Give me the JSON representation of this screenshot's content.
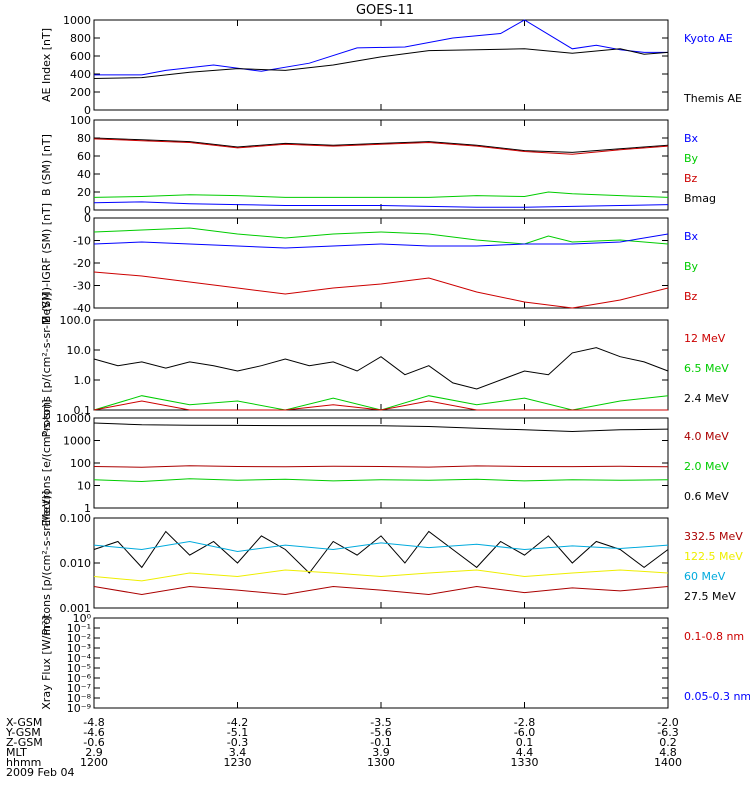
{
  "title": "GOES-11",
  "date_label": "2009 Feb 04",
  "x_axis": {
    "ticks": [
      1200,
      1230,
      1300,
      1330,
      1400
    ],
    "rows": [
      {
        "label": "X-GSM",
        "values": [
          "-4.8",
          "-4.2",
          "-3.5",
          "-2.8",
          "-2.0"
        ]
      },
      {
        "label": "Y-GSM",
        "values": [
          "-4.6",
          "-5.1",
          "-5.6",
          "-6.0",
          "-6.3"
        ]
      },
      {
        "label": "Z-GSM",
        "values": [
          "-0.6",
          "-0.3",
          "-0.1",
          "0.1",
          "0.2"
        ]
      },
      {
        "label": "MLT",
        "values": [
          "2.9",
          "3.4",
          "3.9",
          "4.4",
          "4.8"
        ]
      },
      {
        "label": "hhmm",
        "values": [
          "1200",
          "1230",
          "1300",
          "1330",
          "1400"
        ]
      }
    ]
  },
  "colors": {
    "black": "#000000",
    "blue": "#0000ff",
    "green": "#00cc00",
    "red": "#cc0000",
    "darkred": "#aa0000",
    "yellow": "#eeee00",
    "cyan": "#00aadd"
  },
  "chart_data": [
    {
      "type": "line",
      "ylabel": "AE Index [nT]",
      "ylim": [
        0,
        1000
      ],
      "yticks": [
        "0",
        "200",
        "400",
        "600",
        "800",
        "1000"
      ],
      "legend": [
        {
          "label": "Kyoto AE",
          "color": "#0000ff"
        },
        {
          "label": "Themis AE",
          "color": "#000000"
        }
      ],
      "series": [
        {
          "name": "Kyoto AE",
          "color": "#0000ff",
          "x": [
            1200,
            1210,
            1215,
            1225,
            1235,
            1245,
            1255,
            1305,
            1315,
            1325,
            1330,
            1340,
            1345,
            1350,
            1355,
            1400
          ],
          "y": [
            390,
            390,
            440,
            500,
            430,
            520,
            690,
            700,
            800,
            850,
            1000,
            680,
            720,
            670,
            640,
            640
          ]
        },
        {
          "name": "Themis AE",
          "color": "#000000",
          "x": [
            1200,
            1210,
            1220,
            1230,
            1240,
            1250,
            1300,
            1310,
            1320,
            1330,
            1340,
            1350,
            1355,
            1400
          ],
          "y": [
            350,
            360,
            420,
            460,
            440,
            500,
            590,
            660,
            670,
            680,
            630,
            680,
            620,
            640
          ]
        }
      ]
    },
    {
      "type": "line",
      "ylabel": "B (SM) [nT]",
      "ylim": [
        0,
        100
      ],
      "yticks": [
        "0",
        "20",
        "40",
        "60",
        "80",
        "100"
      ],
      "legend": [
        {
          "label": "Bx",
          "color": "#0000ff"
        },
        {
          "label": "By",
          "color": "#00cc00"
        },
        {
          "label": "Bz",
          "color": "#cc0000"
        },
        {
          "label": "Bmag",
          "color": "#000000"
        }
      ],
      "series": [
        {
          "name": "Bmag",
          "color": "#000000",
          "x": [
            1200,
            1210,
            1220,
            1230,
            1240,
            1250,
            1300,
            1310,
            1320,
            1330,
            1340,
            1350,
            1400
          ],
          "y": [
            80,
            78,
            76,
            70,
            74,
            72,
            74,
            76,
            72,
            66,
            64,
            68,
            72
          ]
        },
        {
          "name": "Bz",
          "color": "#cc0000",
          "x": [
            1200,
            1210,
            1220,
            1230,
            1240,
            1250,
            1300,
            1310,
            1320,
            1330,
            1340,
            1350,
            1400
          ],
          "y": [
            79,
            77,
            75,
            69,
            73,
            71,
            73,
            75,
            71,
            65,
            62,
            67,
            71
          ]
        },
        {
          "name": "By",
          "color": "#00cc00",
          "x": [
            1200,
            1210,
            1220,
            1230,
            1240,
            1250,
            1300,
            1310,
            1320,
            1330,
            1335,
            1340,
            1350,
            1400
          ],
          "y": [
            14,
            15,
            17,
            16,
            14,
            14,
            14,
            14,
            16,
            15,
            20,
            18,
            16,
            14
          ]
        },
        {
          "name": "Bx",
          "color": "#0000ff",
          "x": [
            1200,
            1210,
            1220,
            1230,
            1240,
            1250,
            1300,
            1310,
            1320,
            1330,
            1340,
            1350,
            1400
          ],
          "y": [
            8,
            9,
            7,
            6,
            5,
            5,
            5,
            4,
            3,
            3,
            4,
            5,
            6
          ]
        }
      ]
    },
    {
      "type": "line",
      "ylabel": "B (SM)-IGRF (SM) [nT]",
      "ylim": [
        -40,
        5
      ],
      "yticks": [
        "-40",
        "-30",
        "-20",
        "-10",
        "0"
      ],
      "legend": [
        {
          "label": "Bx",
          "color": "#0000ff"
        },
        {
          "label": "By",
          "color": "#00cc00"
        },
        {
          "label": "Bz",
          "color": "#cc0000"
        }
      ],
      "series": [
        {
          "name": "By",
          "color": "#00cc00",
          "x": [
            1200,
            1210,
            1220,
            1230,
            1240,
            1250,
            1300,
            1310,
            1320,
            1330,
            1335,
            1340,
            1350,
            1400
          ],
          "y": [
            -2,
            -1,
            0,
            -3,
            -5,
            -3,
            -2,
            -3,
            -6,
            -8,
            -4,
            -7,
            -6,
            -8
          ]
        },
        {
          "name": "Bx",
          "color": "#0000ff",
          "x": [
            1200,
            1210,
            1220,
            1230,
            1240,
            1250,
            1300,
            1310,
            1320,
            1330,
            1340,
            1350,
            1400
          ],
          "y": [
            -8,
            -7,
            -8,
            -9,
            -10,
            -9,
            -8,
            -9,
            -9,
            -8,
            -8,
            -7,
            -3
          ]
        },
        {
          "name": "Bz",
          "color": "#cc0000",
          "x": [
            1200,
            1210,
            1220,
            1230,
            1240,
            1250,
            1300,
            1310,
            1320,
            1330,
            1340,
            1345,
            1350,
            1400
          ],
          "y": [
            -22,
            -24,
            -27,
            -30,
            -33,
            -30,
            -28,
            -25,
            -32,
            -37,
            -40,
            -38,
            -36,
            -30
          ]
        }
      ]
    },
    {
      "type": "line",
      "ylabel": "Protons [p/(cm²-s-sr-MeV)]",
      "yscale": "log",
      "ylim": [
        0.1,
        100
      ],
      "yticks": [
        "0.1",
        "1.0",
        "10.0",
        "100.0"
      ],
      "legend": [
        {
          "label": "12 MeV",
          "color": "#cc0000"
        },
        {
          "label": "6.5 MeV",
          "color": "#00cc00"
        },
        {
          "label": "2.4 MeV",
          "color": "#000000"
        }
      ],
      "series": [
        {
          "name": "2.4 MeV",
          "color": "#000000",
          "x": [
            1200,
            1205,
            1210,
            1215,
            1220,
            1225,
            1230,
            1235,
            1240,
            1245,
            1250,
            1255,
            1300,
            1305,
            1310,
            1315,
            1320,
            1330,
            1335,
            1340,
            1345,
            1350,
            1355,
            1400
          ],
          "y": [
            5,
            3,
            4,
            2.5,
            4,
            3,
            2,
            3,
            5,
            3,
            4,
            2,
            6,
            1.5,
            3,
            0.8,
            0.5,
            2,
            1.5,
            8,
            12,
            6,
            4,
            2
          ]
        },
        {
          "name": "6.5 MeV",
          "color": "#00cc00",
          "x": [
            1200,
            1210,
            1220,
            1230,
            1240,
            1250,
            1300,
            1310,
            1320,
            1330,
            1340,
            1350,
            1400
          ],
          "y": [
            0.1,
            0.3,
            0.15,
            0.2,
            0.1,
            0.25,
            0.1,
            0.3,
            0.15,
            0.25,
            0.1,
            0.2,
            0.3
          ]
        },
        {
          "name": "12 MeV",
          "color": "#cc0000",
          "x": [
            1200,
            1210,
            1220,
            1230,
            1240,
            1250,
            1300,
            1310,
            1320,
            1330,
            1340,
            1350,
            1400
          ],
          "y": [
            0.1,
            0.2,
            0.1,
            0.1,
            0.1,
            0.15,
            0.1,
            0.2,
            0.1,
            0.1,
            0.1,
            0.1,
            0.1
          ]
        }
      ]
    },
    {
      "type": "line",
      "ylabel": "Electrons [e/(cm²-s-sr)]",
      "yscale": "log",
      "ylim": [
        1,
        10000
      ],
      "yticks": [
        "1",
        "10",
        "100",
        "1000",
        "10000"
      ],
      "legend": [
        {
          "label": "4.0 MeV",
          "color": "#aa0000"
        },
        {
          "label": "2.0 MeV",
          "color": "#00cc00"
        },
        {
          "label": "0.6 MeV",
          "color": "#000000"
        }
      ],
      "series": [
        {
          "name": "0.6 MeV",
          "color": "#000000",
          "x": [
            1200,
            1210,
            1220,
            1230,
            1240,
            1250,
            1300,
            1310,
            1320,
            1330,
            1340,
            1350,
            1400
          ],
          "y": [
            6000,
            5000,
            4800,
            4700,
            4600,
            4600,
            4500,
            4200,
            3500,
            3000,
            2500,
            3000,
            3200
          ]
        },
        {
          "name": "4.0 MeV",
          "color": "#aa0000",
          "x": [
            1200,
            1210,
            1220,
            1230,
            1240,
            1250,
            1300,
            1310,
            1320,
            1330,
            1340,
            1350,
            1400
          ],
          "y": [
            70,
            65,
            75,
            70,
            68,
            72,
            70,
            66,
            74,
            70,
            69,
            71,
            68
          ]
        },
        {
          "name": "2.0 MeV",
          "color": "#00cc00",
          "x": [
            1200,
            1210,
            1220,
            1230,
            1240,
            1250,
            1300,
            1310,
            1320,
            1330,
            1340,
            1350,
            1400
          ],
          "y": [
            18,
            15,
            20,
            17,
            19,
            16,
            18,
            17,
            19,
            16,
            18,
            17,
            18
          ]
        }
      ]
    },
    {
      "type": "line",
      "ylabel": "Protons [p/(cm²-s-sr-MeV)]",
      "yscale": "log",
      "ylim": [
        0.001,
        0.1
      ],
      "yticks": [
        "0.001",
        "0.010",
        "0.100"
      ],
      "legend": [
        {
          "label": "332.5 MeV",
          "color": "#aa0000"
        },
        {
          "label": "122.5 MeV",
          "color": "#eeee00"
        },
        {
          "label": "60 MeV",
          "color": "#00aadd"
        },
        {
          "label": "27.5 MeV",
          "color": "#000000"
        }
      ],
      "series": [
        {
          "name": "27.5 MeV",
          "color": "#000000",
          "x": [
            1200,
            1205,
            1210,
            1215,
            1220,
            1225,
            1230,
            1235,
            1240,
            1245,
            1250,
            1255,
            1300,
            1305,
            1310,
            1315,
            1320,
            1325,
            1330,
            1335,
            1340,
            1345,
            1350,
            1355,
            1400
          ],
          "y": [
            0.02,
            0.03,
            0.008,
            0.05,
            0.015,
            0.03,
            0.01,
            0.04,
            0.02,
            0.006,
            0.03,
            0.015,
            0.04,
            0.01,
            0.05,
            0.02,
            0.008,
            0.03,
            0.015,
            0.04,
            0.01,
            0.03,
            0.02,
            0.008,
            0.02
          ]
        },
        {
          "name": "60 MeV",
          "color": "#00aadd",
          "x": [
            1200,
            1210,
            1220,
            1230,
            1240,
            1250,
            1300,
            1310,
            1320,
            1330,
            1340,
            1350,
            1400
          ],
          "y": [
            0.025,
            0.02,
            0.03,
            0.018,
            0.025,
            0.02,
            0.028,
            0.022,
            0.026,
            0.02,
            0.024,
            0.021,
            0.025
          ]
        },
        {
          "name": "122.5 MeV",
          "color": "#eeee00",
          "x": [
            1200,
            1210,
            1220,
            1230,
            1240,
            1250,
            1300,
            1310,
            1320,
            1330,
            1340,
            1350,
            1400
          ],
          "y": [
            0.005,
            0.004,
            0.006,
            0.005,
            0.007,
            0.006,
            0.005,
            0.006,
            0.007,
            0.005,
            0.006,
            0.007,
            0.006
          ]
        },
        {
          "name": "332.5 MeV",
          "color": "#aa0000",
          "x": [
            1200,
            1210,
            1220,
            1230,
            1240,
            1250,
            1300,
            1310,
            1320,
            1330,
            1340,
            1350,
            1400
          ],
          "y": [
            0.003,
            0.002,
            0.003,
            0.0025,
            0.002,
            0.003,
            0.0025,
            0.002,
            0.003,
            0.0022,
            0.0028,
            0.0024,
            0.003
          ]
        }
      ]
    },
    {
      "type": "line",
      "ylabel": "Xray Flux [W/m²]",
      "yscale": "log",
      "ylim": [
        1e-09,
        1
      ],
      "yticks": [
        "10⁰",
        "10⁻¹",
        "10⁻²",
        "10⁻³",
        "10⁻⁴",
        "10⁻⁵",
        "10⁻⁶",
        "10⁻⁷",
        "10⁻⁸",
        "10⁻⁹"
      ],
      "legend": [
        {
          "label": "0.1-0.8 nm",
          "color": "#cc0000"
        },
        {
          "label": "0.05-0.3 nm",
          "color": "#0000ff"
        }
      ],
      "series": []
    }
  ]
}
